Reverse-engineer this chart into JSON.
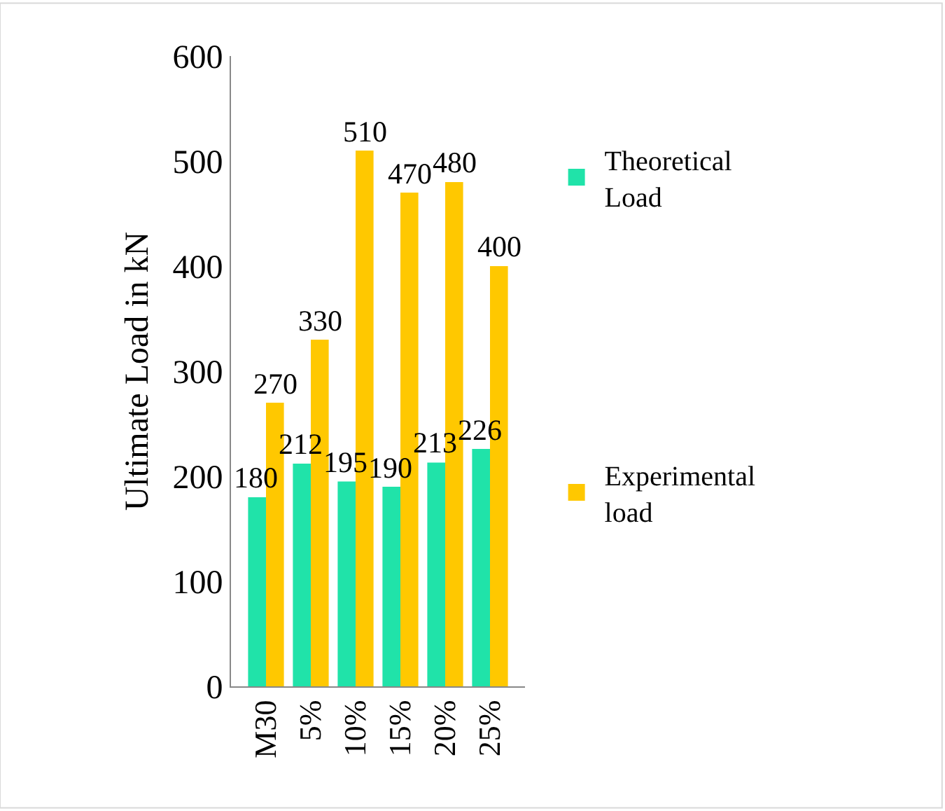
{
  "chart_data": {
    "type": "bar",
    "ylabel": "Ultimate Load in kN",
    "categories": [
      "M30",
      "5%",
      "10%",
      "15%",
      "20%",
      "25%"
    ],
    "series": [
      {
        "name": "Theoretical Load",
        "color": "#20e3a9",
        "values": [
          180,
          212,
          195,
          190,
          213,
          226
        ]
      },
      {
        "name": "Experimental load",
        "color": "#ffc800",
        "values": [
          270,
          330,
          510,
          470,
          480,
          400
        ]
      }
    ],
    "ylim": [
      0,
      600
    ],
    "yticks": [
      0,
      100,
      200,
      300,
      400,
      500,
      600
    ],
    "data_labels": true,
    "legend": "right"
  }
}
